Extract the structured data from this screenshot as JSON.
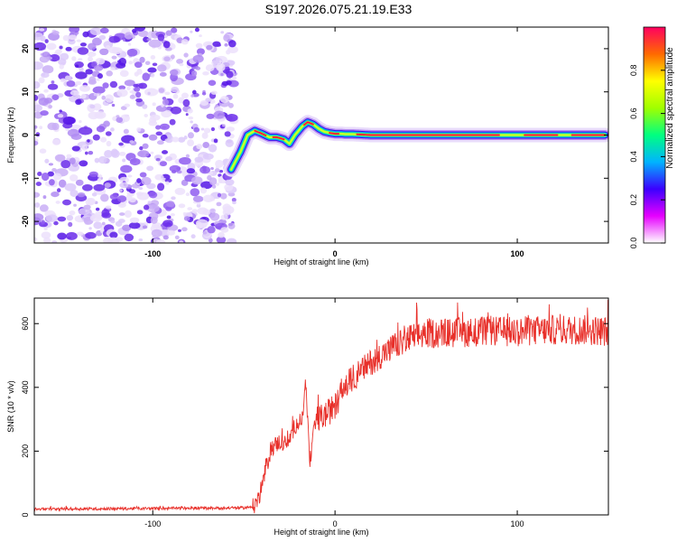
{
  "title": "S197.2026.075.21.19.E33",
  "chart_data": [
    {
      "type": "heatmap",
      "xlabel": "Height of straight line (km)",
      "ylabel": "Frequency (Hz)",
      "xlim": [
        -165,
        150
      ],
      "ylim": [
        -25,
        25
      ],
      "xticks": [
        {
          "value": -100,
          "label": "-100"
        },
        {
          "value": 0,
          "label": "0"
        },
        {
          "value": 100,
          "label": "100"
        }
      ],
      "yticks": [
        {
          "value": -20,
          "label": "-20"
        },
        {
          "value": -10,
          "label": "-10"
        },
        {
          "value": 0,
          "label": "0"
        },
        {
          "value": 10,
          "label": "10"
        },
        {
          "value": 20,
          "label": "20"
        }
      ],
      "noise_region_x": [
        -165,
        -55
      ],
      "ridge": {
        "x": [
          -57,
          -52,
          -48,
          -44,
          -40,
          -36,
          -32,
          -28,
          -25,
          -22,
          -18,
          -15,
          -12,
          -9,
          -6,
          -3,
          0,
          3,
          6,
          10,
          20,
          40,
          60,
          80,
          100,
          120,
          140,
          148
        ],
        "y": [
          -8,
          -4,
          0,
          1,
          0.3,
          -0.5,
          -0.5,
          -1,
          -2,
          0,
          2,
          3,
          2.5,
          1.5,
          0.8,
          0.5,
          0.3,
          0.3,
          0.2,
          0.2,
          0,
          0,
          0,
          0,
          0,
          0,
          0,
          0
        ]
      },
      "colorbar": {
        "label": "Normalized spectral amplitude",
        "range": [
          0,
          1
        ],
        "ticks": [
          {
            "value": 0.0,
            "label": "0.0"
          },
          {
            "value": 0.2,
            "label": "0.2"
          },
          {
            "value": 0.4,
            "label": "0.4"
          },
          {
            "value": 0.6,
            "label": "0.6"
          },
          {
            "value": 0.8,
            "label": "0.8"
          }
        ],
        "colors": [
          "#ffffff",
          "#e600ff",
          "#3b00ff",
          "#00b4ff",
          "#00ff80",
          "#a0ff00",
          "#ffff00",
          "#ff6a00",
          "#ff0060"
        ]
      }
    },
    {
      "type": "line",
      "xlabel": "Height of straight line (km)",
      "ylabel": "SNR (10 * v/v)",
      "xlim": [
        -165,
        150
      ],
      "ylim": [
        0,
        680
      ],
      "xticks": [
        {
          "value": -100,
          "label": "-100"
        },
        {
          "value": 0,
          "label": "0"
        },
        {
          "value": 100,
          "label": "100"
        }
      ],
      "yticks": [
        {
          "value": 0,
          "label": "0"
        },
        {
          "value": 200,
          "label": "200"
        },
        {
          "value": 400,
          "label": "400"
        },
        {
          "value": 600,
          "label": "600"
        }
      ],
      "series": [
        {
          "name": "SNR",
          "color": "#e8302a",
          "x": [
            -165,
            -50,
            -45,
            -42,
            -38,
            -35,
            -30,
            -26,
            -22,
            -18,
            -16,
            -15,
            -14,
            -12,
            -10,
            -6,
            -2,
            0,
            5,
            10,
            15,
            20,
            30,
            40,
            50,
            60,
            80,
            100,
            120,
            140,
            150
          ],
          "y": [
            18,
            22,
            25,
            50,
            140,
            210,
            230,
            220,
            280,
            300,
            420,
            300,
            150,
            250,
            300,
            310,
            330,
            340,
            400,
            430,
            455,
            480,
            520,
            550,
            570,
            570,
            575,
            575,
            580,
            580,
            575
          ]
        }
      ]
    }
  ]
}
